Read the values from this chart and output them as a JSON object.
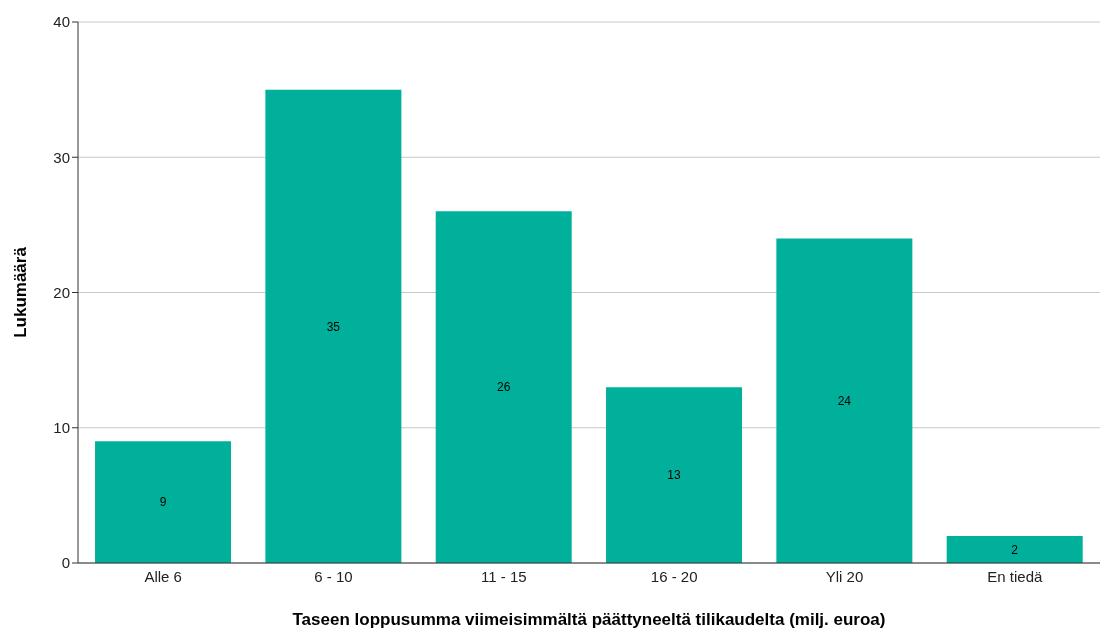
{
  "chart_data": {
    "type": "bar",
    "xlabel": "Taseen loppusumma viimeisimmältä päättyneeltä tilikaudelta (milj. euroa)",
    "ylabel": "Lukumäärä",
    "categories": [
      "Alle 6",
      "6 - 10",
      "11 - 15",
      "16 - 20",
      "Yli 20",
      "En tiedä"
    ],
    "values": [
      9,
      35,
      26,
      13,
      24,
      2
    ],
    "color": "#00b09b",
    "ylim": [
      0,
      40
    ],
    "yticks": [
      0,
      10,
      20,
      30,
      40
    ],
    "grid": "y",
    "data_labels": true
  }
}
